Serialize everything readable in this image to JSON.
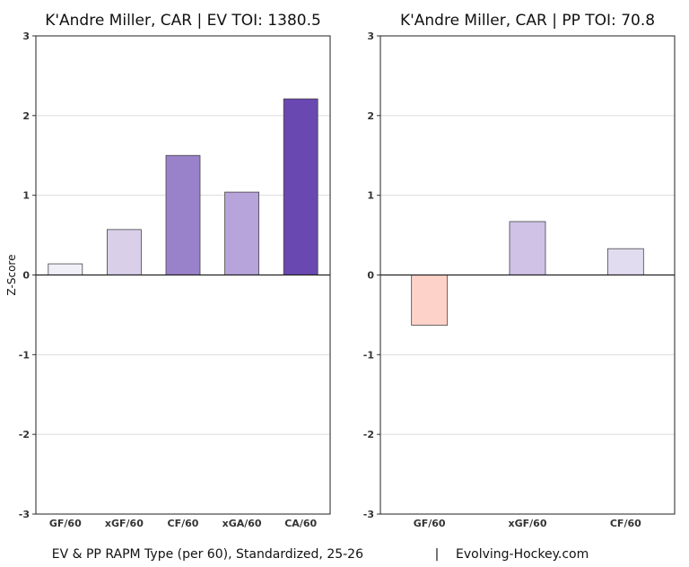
{
  "chart_data": [
    {
      "type": "bar",
      "title": "K'Andre Miller, CAR  |  EV TOI: 1380.5",
      "ylabel": "Z-Score",
      "ylim": [
        -3,
        3
      ],
      "yticks": [
        "-3",
        "-2",
        "-1",
        "0",
        "1",
        "2",
        "3"
      ],
      "grid": true,
      "categories": [
        "GF/60",
        "xGF/60",
        "CF/60",
        "xGA/60",
        "CA/60"
      ],
      "values": [
        0.14,
        0.57,
        1.5,
        1.04,
        2.21
      ],
      "colors": [
        "#f0eff7",
        "#d9cfe9",
        "#9a82ca",
        "#b7a4da",
        "#6a48b1"
      ]
    },
    {
      "type": "bar",
      "title": "K'Andre Miller, CAR  |  PP TOI: 70.8",
      "ylim": [
        -3,
        3
      ],
      "yticks": [
        "-3",
        "-2",
        "-1",
        "0",
        "1",
        "2",
        "3"
      ],
      "grid": true,
      "categories": [
        "GF/60",
        "xGF/60",
        "CF/60"
      ],
      "values": [
        -0.63,
        0.67,
        0.33
      ],
      "colors": [
        "#fdd2c8",
        "#d0c2e6",
        "#e2dcf0"
      ]
    }
  ],
  "footer": {
    "left": "EV & PP RAPM Type (per 60), Standardized, 25-26",
    "separator": "|",
    "right": "Evolving-Hockey.com"
  }
}
